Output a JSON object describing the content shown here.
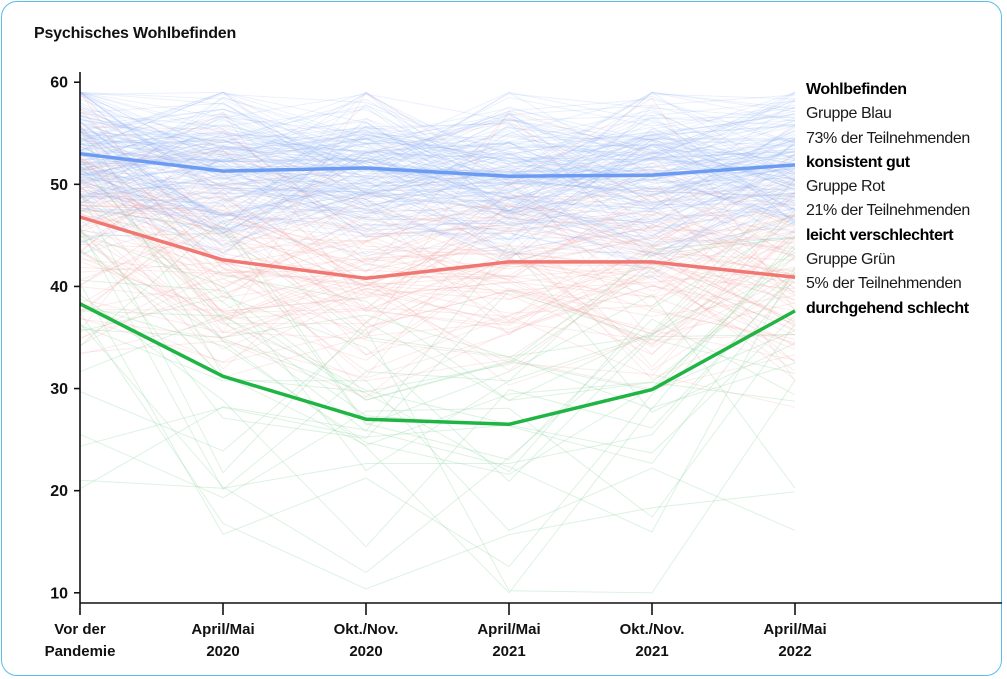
{
  "chart_data": {
    "type": "line",
    "title": "Psychisches Wohlbefinden",
    "categories": [
      [
        "Vor der",
        "Pandemie"
      ],
      [
        "April/Mai",
        "2020"
      ],
      [
        "Okt./Nov.",
        "2020"
      ],
      [
        "April/Mai",
        "2021"
      ],
      [
        "Okt./Nov.",
        "2021"
      ],
      [
        "April/Mai",
        "2022"
      ]
    ],
    "ylim": [
      9,
      61
    ],
    "yticks": [
      10,
      20,
      30,
      40,
      50,
      60
    ],
    "xlabel": "",
    "ylabel": "",
    "grid": false,
    "series": [
      {
        "group": "Gruppe Blau",
        "color": "#6b9bf2",
        "values": [
          53.0,
          51.3,
          51.6,
          50.8,
          50.9,
          51.9
        ]
      },
      {
        "group": "Gruppe Rot",
        "color": "#f07772",
        "values": [
          46.8,
          42.6,
          40.8,
          42.4,
          42.4,
          40.9
        ]
      },
      {
        "group": "Gruppe Grün",
        "color": "#1fb443",
        "values": [
          38.3,
          31.2,
          27.0,
          26.5,
          29.9,
          37.6
        ]
      }
    ],
    "individual_trajectories": {
      "blue_count_approx": 180,
      "red_count_approx": 90,
      "green_count_approx": 30,
      "y_range": [
        10,
        59
      ]
    }
  },
  "legend": {
    "header": "Wohlbefinden",
    "groups": [
      {
        "name": "Gruppe Blau",
        "share": "73% der Teilnehmenden",
        "description": "konsistent gut"
      },
      {
        "name": "Gruppe Rot",
        "share": "21% der Teilnehmenden",
        "description": "leicht verschlechtert"
      },
      {
        "name": "Gruppe Grün",
        "share": "5% der Teilnehmenden",
        "description": "durchgehend schlecht"
      }
    ]
  },
  "colors": {
    "frame": "#5bbde8",
    "blue_thin": "#8fb4f5",
    "red_thin": "#f3a5a2",
    "green_thin": "#8fd49f"
  }
}
